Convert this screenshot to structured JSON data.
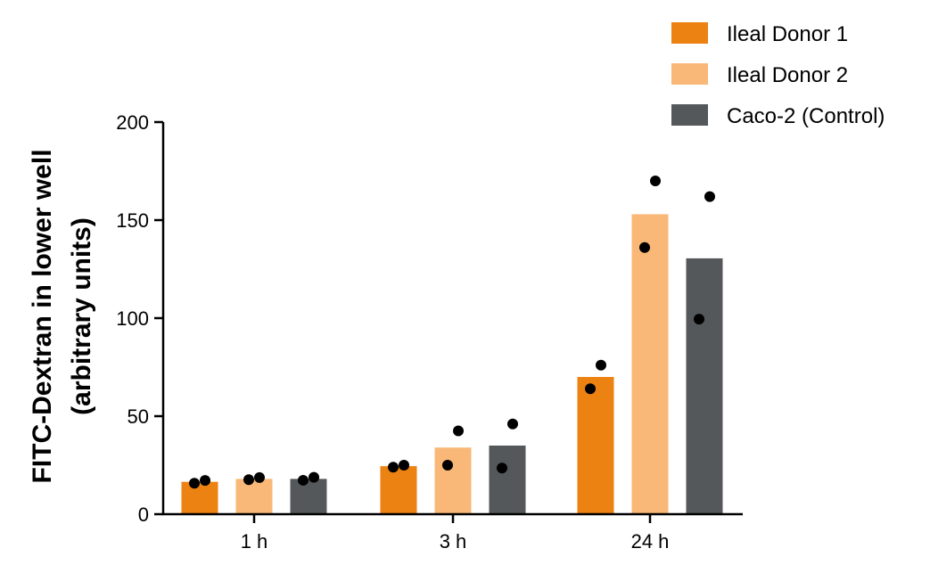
{
  "chart_data": {
    "type": "bar",
    "ylabel_lines": [
      "FITC-Dextran in lower well",
      "(arbitrary units)"
    ],
    "xlabel": "",
    "ylim": [
      0,
      200
    ],
    "yticks": [
      "0",
      "50",
      "100",
      "150",
      "200"
    ],
    "categories": [
      "1 h",
      "3 h",
      "24 h"
    ],
    "series": [
      {
        "name": "Ileal Donor 1",
        "color": "#EC8212",
        "values": [
          16.5,
          24.5,
          70
        ],
        "points": [
          [
            15.8,
            17.2
          ],
          [
            24.0,
            25.0
          ],
          [
            64.0,
            76.0
          ]
        ]
      },
      {
        "name": "Ileal Donor 2",
        "color": "#F9B878",
        "values": [
          18,
          34,
          153
        ],
        "points": [
          [
            17.6,
            18.7
          ],
          [
            25.0,
            42.5
          ],
          [
            136.0,
            170.0
          ]
        ]
      },
      {
        "name": "Caco-2 (Control)",
        "color": "#54585B",
        "values": [
          18,
          35,
          130.5
        ],
        "points": [
          [
            17.3,
            18.8
          ],
          [
            23.5,
            46.0
          ],
          [
            99.5,
            162.0
          ]
        ]
      }
    ],
    "legend": "top-right",
    "grid": false
  }
}
